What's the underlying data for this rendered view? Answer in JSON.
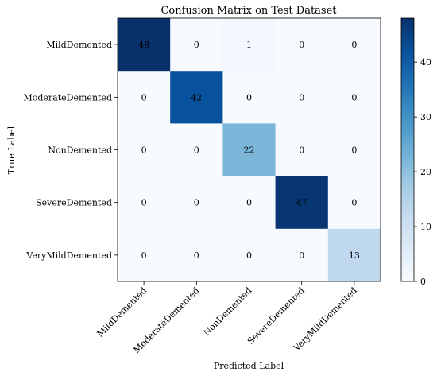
{
  "chart_data": {
    "type": "heatmap",
    "title": "Confusion Matrix on Test Dataset",
    "xlabel": "Predicted Label",
    "ylabel": "True Label",
    "x_categories": [
      "MildDemented",
      "ModerateDemented",
      "NonDemented",
      "SevereDemented",
      "VeryMildDemented"
    ],
    "y_categories": [
      "MildDemented",
      "ModerateDemented",
      "NonDemented",
      "SevereDemented",
      "VeryMildDemented"
    ],
    "values": [
      [
        48,
        0,
        1,
        0,
        0
      ],
      [
        0,
        42,
        0,
        0,
        0
      ],
      [
        0,
        0,
        22,
        0,
        0
      ],
      [
        0,
        0,
        0,
        47,
        0
      ],
      [
        0,
        0,
        0,
        0,
        13
      ]
    ],
    "colormap": "Blues",
    "colorbar": {
      "range": [
        0,
        48
      ],
      "ticks": [
        0,
        10,
        20,
        30,
        40
      ]
    }
  }
}
